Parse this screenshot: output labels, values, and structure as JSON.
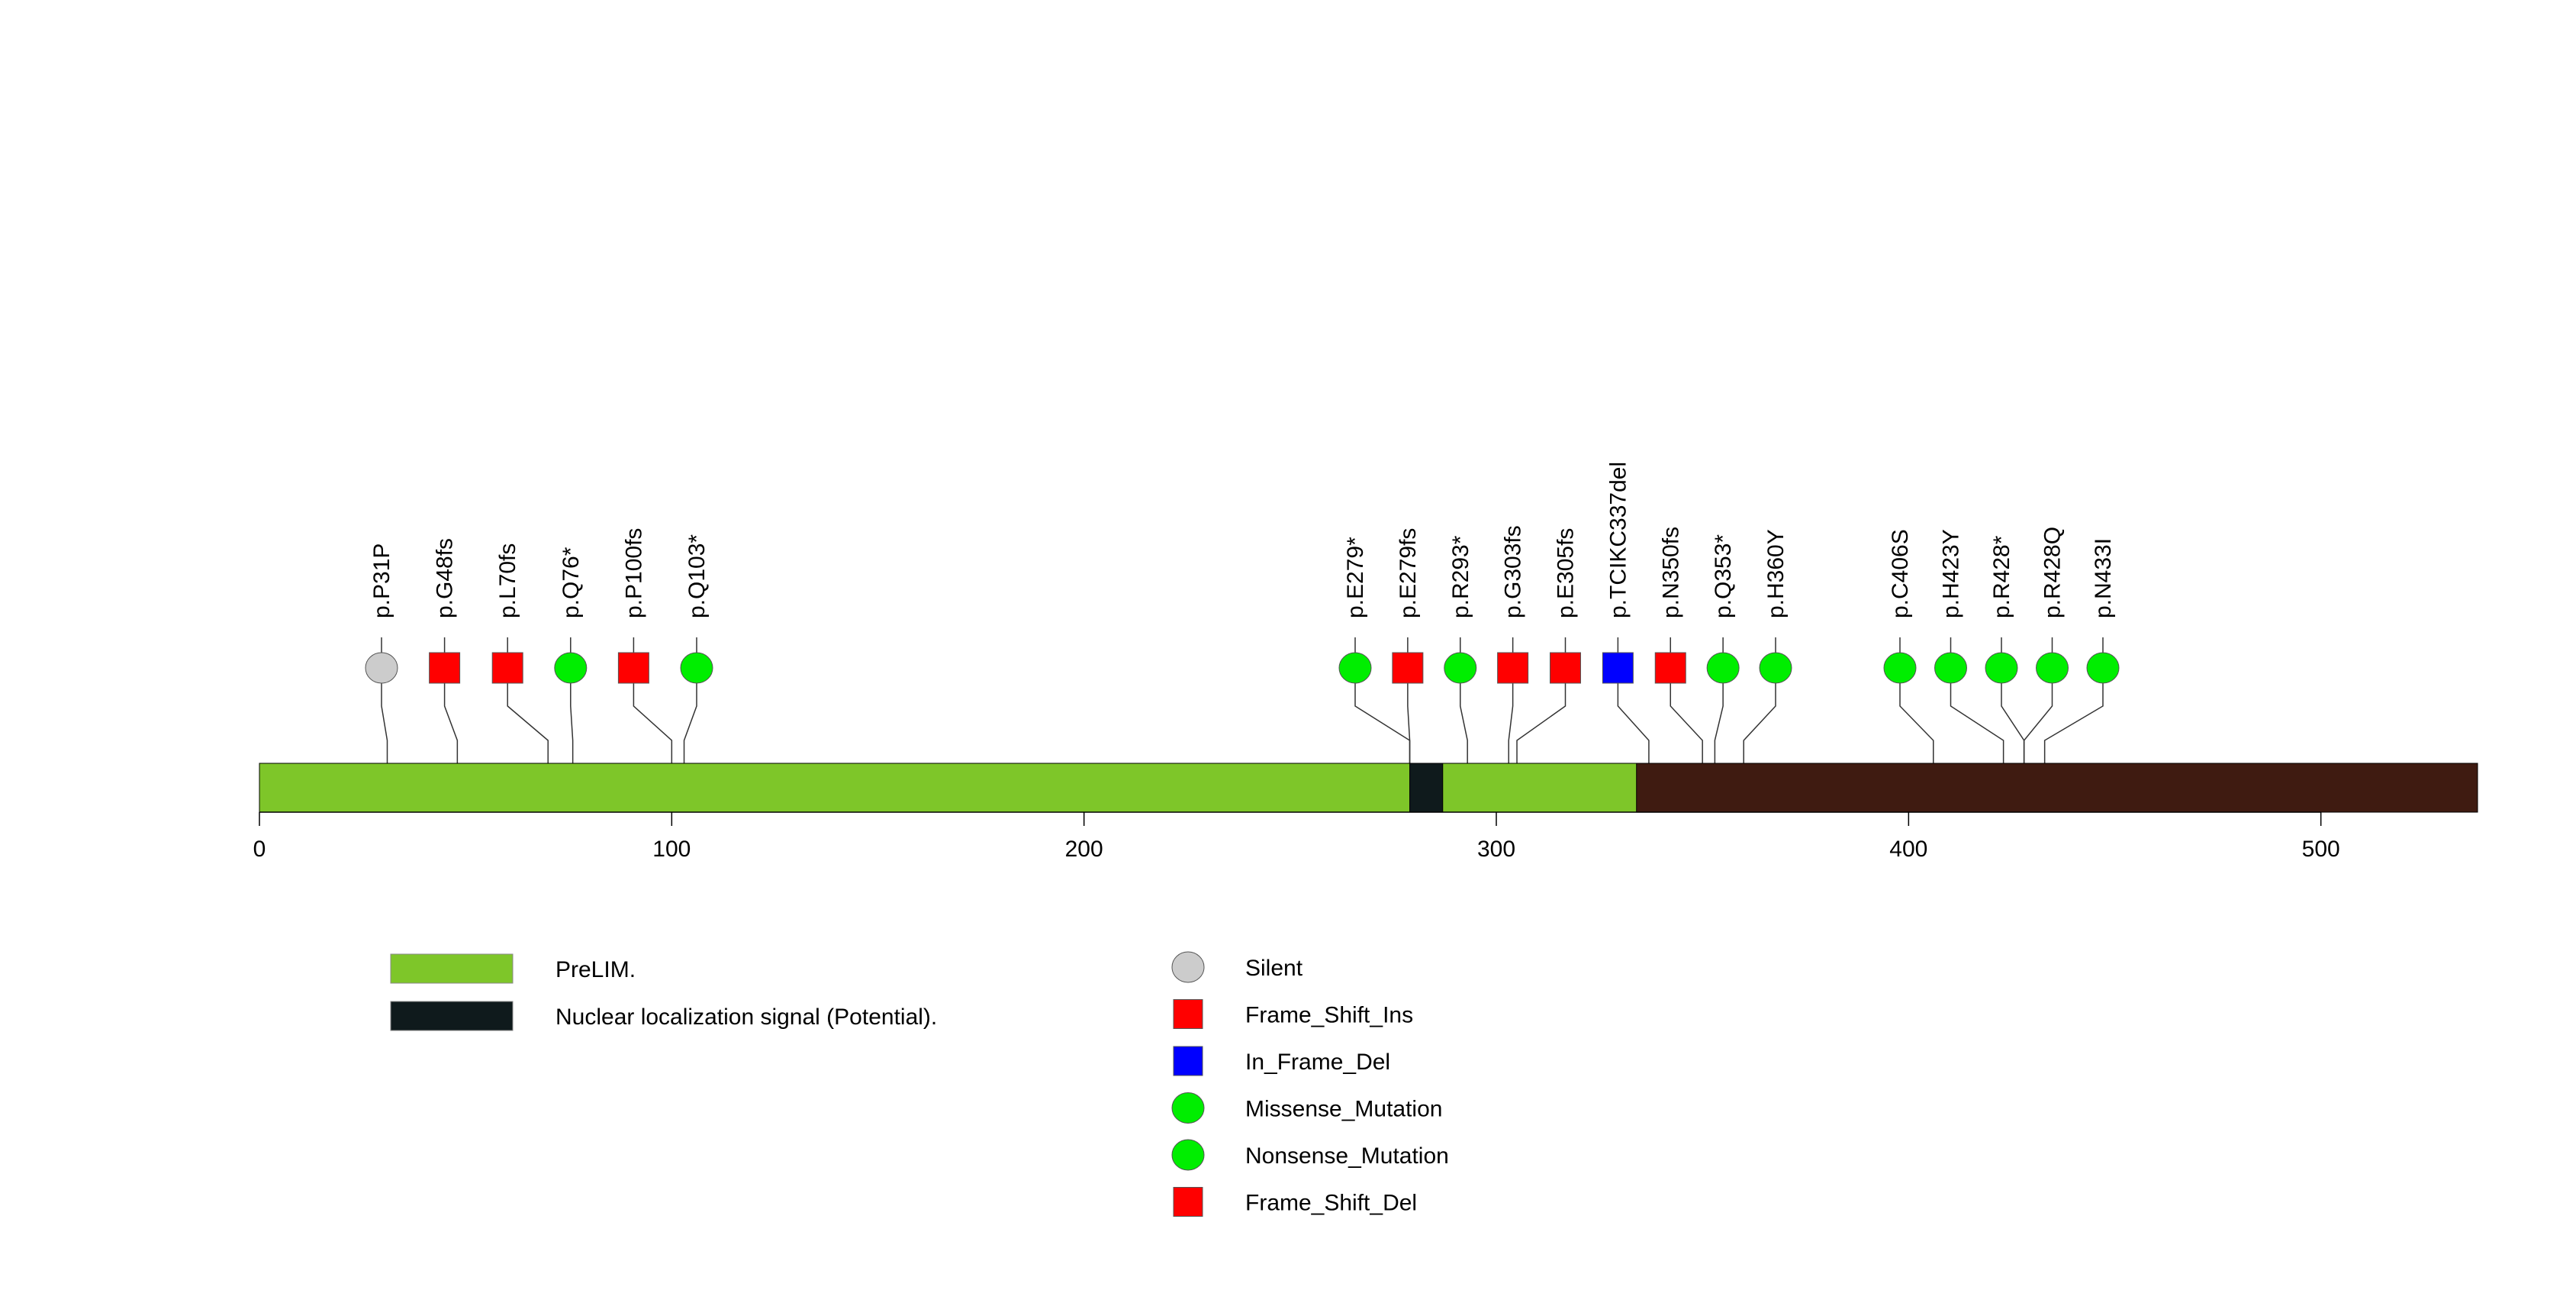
{
  "chart_data": {
    "type": "lollipop",
    "title": "",
    "protein_length": 538,
    "axis": {
      "xlim": [
        0,
        538
      ],
      "ticks": [
        0,
        100,
        200,
        300,
        400,
        500
      ],
      "tick_labels": [
        "0",
        "100",
        "200",
        "300",
        "400",
        "500"
      ]
    },
    "backbone_color": "#3f1b11",
    "domains": [
      {
        "name": "PreLIM.",
        "start": 0,
        "end": 334,
        "color": "#7ec629"
      },
      {
        "name": "Nuclear localization signal (Potential).",
        "start": 279,
        "end": 287,
        "color": "#0f1a1c"
      }
    ],
    "mutations": [
      {
        "label": "p.P31P",
        "position": 31,
        "type": "Silent"
      },
      {
        "label": "p.G48fs",
        "position": 48,
        "type": "Frame_Shift_Ins"
      },
      {
        "label": "p.L70fs",
        "position": 70,
        "type": "Frame_Shift_Del"
      },
      {
        "label": "p.Q76*",
        "position": 76,
        "type": "Nonsense_Mutation"
      },
      {
        "label": "p.P100fs",
        "position": 100,
        "type": "Frame_Shift_Del"
      },
      {
        "label": "p.Q103*",
        "position": 103,
        "type": "Nonsense_Mutation"
      },
      {
        "label": "p.E279*",
        "position": 279,
        "type": "Nonsense_Mutation"
      },
      {
        "label": "p.E279fs",
        "position": 279,
        "type": "Frame_Shift_Del"
      },
      {
        "label": "p.R293*",
        "position": 293,
        "type": "Nonsense_Mutation"
      },
      {
        "label": "p.G303fs",
        "position": 303,
        "type": "Frame_Shift_Del"
      },
      {
        "label": "p.E305fs",
        "position": 305,
        "type": "Frame_Shift_Del"
      },
      {
        "label": "p.TCIKC337del",
        "position": 337,
        "type": "In_Frame_Del"
      },
      {
        "label": "p.N350fs",
        "position": 350,
        "type": "Frame_Shift_Del"
      },
      {
        "label": "p.Q353*",
        "position": 353,
        "type": "Nonsense_Mutation"
      },
      {
        "label": "p.H360Y",
        "position": 360,
        "type": "Missense_Mutation"
      },
      {
        "label": "p.C406S",
        "position": 406,
        "type": "Missense_Mutation"
      },
      {
        "label": "p.H423Y",
        "position": 423,
        "type": "Missense_Mutation"
      },
      {
        "label": "p.R428*",
        "position": 428,
        "type": "Nonsense_Mutation"
      },
      {
        "label": "p.R428Q",
        "position": 428,
        "type": "Missense_Mutation"
      },
      {
        "label": "p.N433I",
        "position": 433,
        "type": "Missense_Mutation"
      }
    ],
    "legend": {
      "domains": [
        {
          "label": "PreLIM.",
          "color": "#7ec629"
        },
        {
          "label": "Nuclear localization signal (Potential).",
          "color": "#0f1a1c"
        }
      ],
      "mutation_types": [
        {
          "label": "Silent",
          "shape": "circle",
          "color": "#cccccc"
        },
        {
          "label": "Frame_Shift_Ins",
          "shape": "square",
          "color": "#ff0000"
        },
        {
          "label": "In_Frame_Del",
          "shape": "square",
          "color": "#0000ff"
        },
        {
          "label": "Missense_Mutation",
          "shape": "circle",
          "color": "#00ee00"
        },
        {
          "label": "Nonsense_Mutation",
          "shape": "circle",
          "color": "#00ee00"
        },
        {
          "label": "Frame_Shift_Del",
          "shape": "square",
          "color": "#ff0000"
        }
      ]
    }
  }
}
